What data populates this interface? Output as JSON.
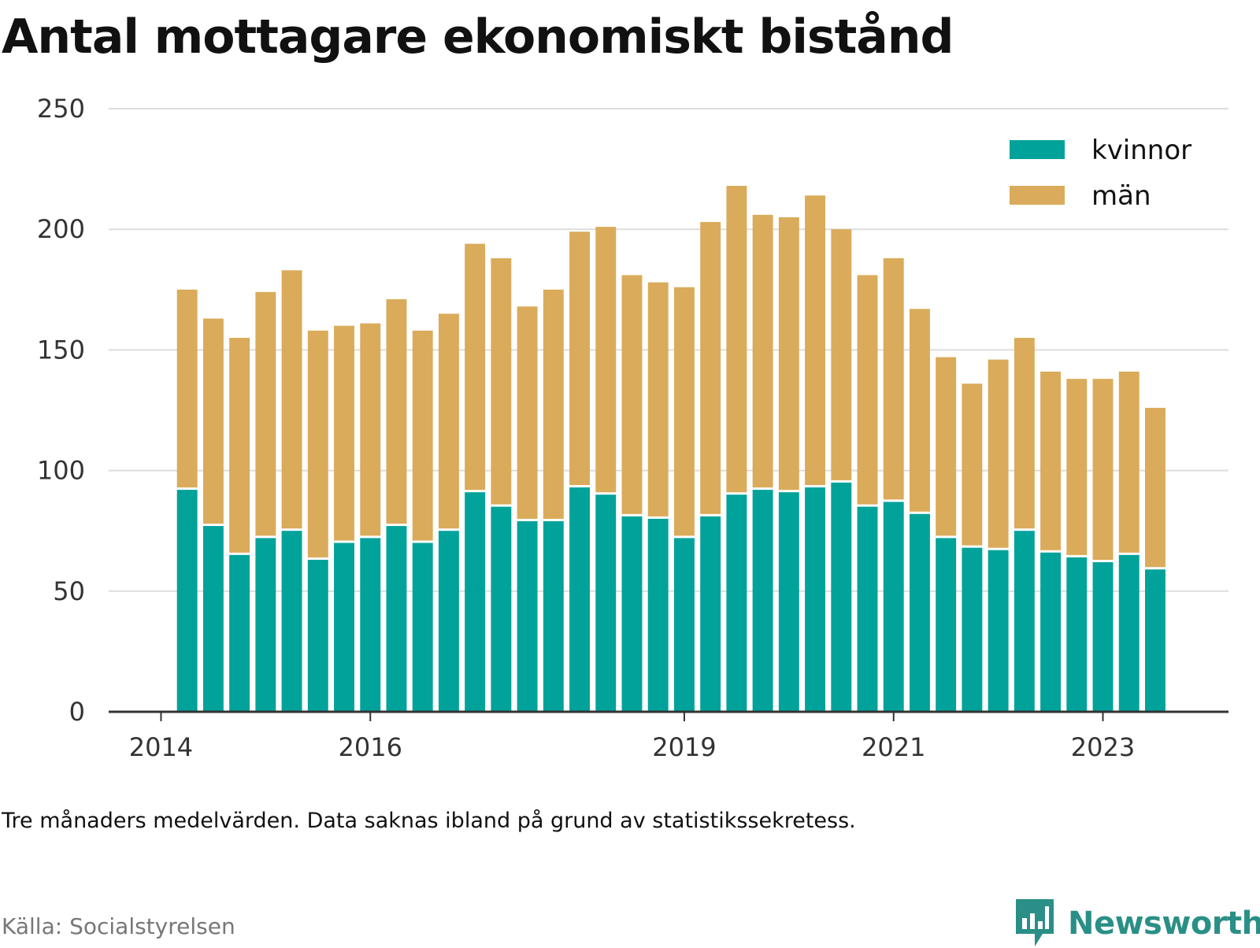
{
  "page": {
    "note": "Tre månaders medelvärden. Data saknas ibland på grund av statistikssekretess.",
    "source": "Källa: Socialstyrelsen",
    "brand": "Newsworthy",
    "logo_icon": "newsworthy-logo-icon"
  },
  "colors": {
    "kvinnor": "#00a29a",
    "man": "#daab5a",
    "grid": "#dddddd",
    "axis": "#333333",
    "brand": "#2a8f86"
  },
  "chart_data": {
    "type": "bar",
    "stacked": true,
    "title": "Antal mottagare ekonomiskt bistånd",
    "xlabel": "",
    "ylabel": "",
    "ylim": [
      0,
      250
    ],
    "yticks": [
      0,
      50,
      100,
      150,
      200,
      250
    ],
    "xticks": [
      "2014",
      "2016",
      "2019",
      "2021",
      "2023"
    ],
    "xtick_positions": [
      2014.0,
      2016.0,
      2019.0,
      2021.0,
      2023.0
    ],
    "xlim": [
      2013.5,
      2024.2
    ],
    "grid": true,
    "legend_position": "top-right",
    "x": [
      2014.25,
      2014.5,
      2014.75,
      2015.0,
      2015.25,
      2015.5,
      2015.75,
      2016.0,
      2016.25,
      2016.5,
      2016.75,
      2017.0,
      2017.25,
      2017.5,
      2017.75,
      2018.0,
      2018.25,
      2018.5,
      2018.75,
      2019.0,
      2019.25,
      2019.5,
      2019.75,
      2020.0,
      2020.25,
      2020.5,
      2020.75,
      2021.0,
      2021.25,
      2021.5,
      2021.75,
      2022.0,
      2022.25,
      2022.5,
      2022.75,
      2023.0,
      2023.25,
      2023.5
    ],
    "series": [
      {
        "name": "kvinnor",
        "values": [
          92,
          77,
          65,
          72,
          75,
          63,
          70,
          72,
          77,
          70,
          75,
          91,
          85,
          79,
          79,
          93,
          90,
          81,
          80,
          72,
          81,
          90,
          92,
          91,
          93,
          95,
          85,
          87,
          82,
          72,
          68,
          67,
          75,
          66,
          64,
          62,
          65,
          59
        ]
      },
      {
        "name": "män",
        "values": [
          83,
          86,
          90,
          102,
          108,
          95,
          90,
          89,
          94,
          88,
          90,
          103,
          103,
          89,
          96,
          106,
          111,
          100,
          98,
          104,
          122,
          128,
          114,
          114,
          121,
          105,
          96,
          101,
          85,
          75,
          68,
          79,
          80,
          75,
          74,
          76,
          76,
          67
        ]
      }
    ]
  }
}
